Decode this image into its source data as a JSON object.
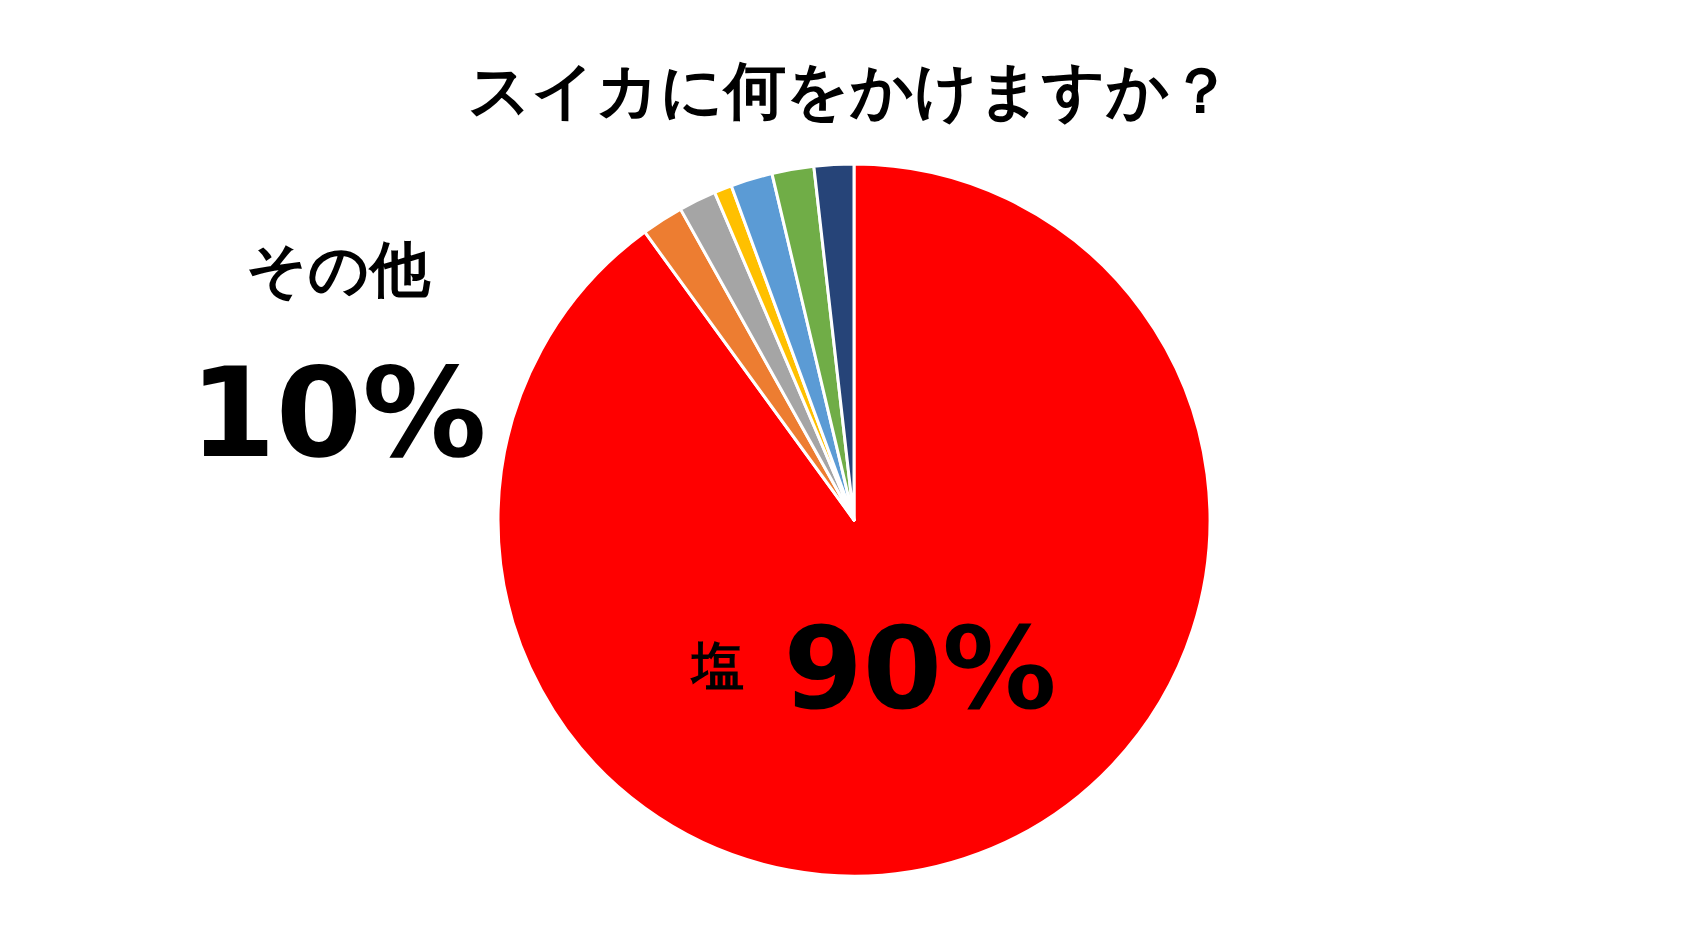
{
  "chart_data": {
    "type": "pie",
    "title": "スイカに何をかけますか？",
    "categories": [
      "塩",
      null,
      null,
      null,
      null,
      null,
      null
    ],
    "values": [
      90,
      1.9,
      1.7,
      0.8,
      1.9,
      1.9,
      1.8
    ],
    "colors": [
      "#ff0000",
      "#ed7d31",
      "#a5a5a5",
      "#ffc000",
      "#5b9bd5",
      "#70ad47",
      "#264478"
    ],
    "value_labels": [
      "90%",
      null,
      null,
      null,
      null,
      null,
      null
    ],
    "annotations": [
      "その他",
      "10%"
    ]
  }
}
